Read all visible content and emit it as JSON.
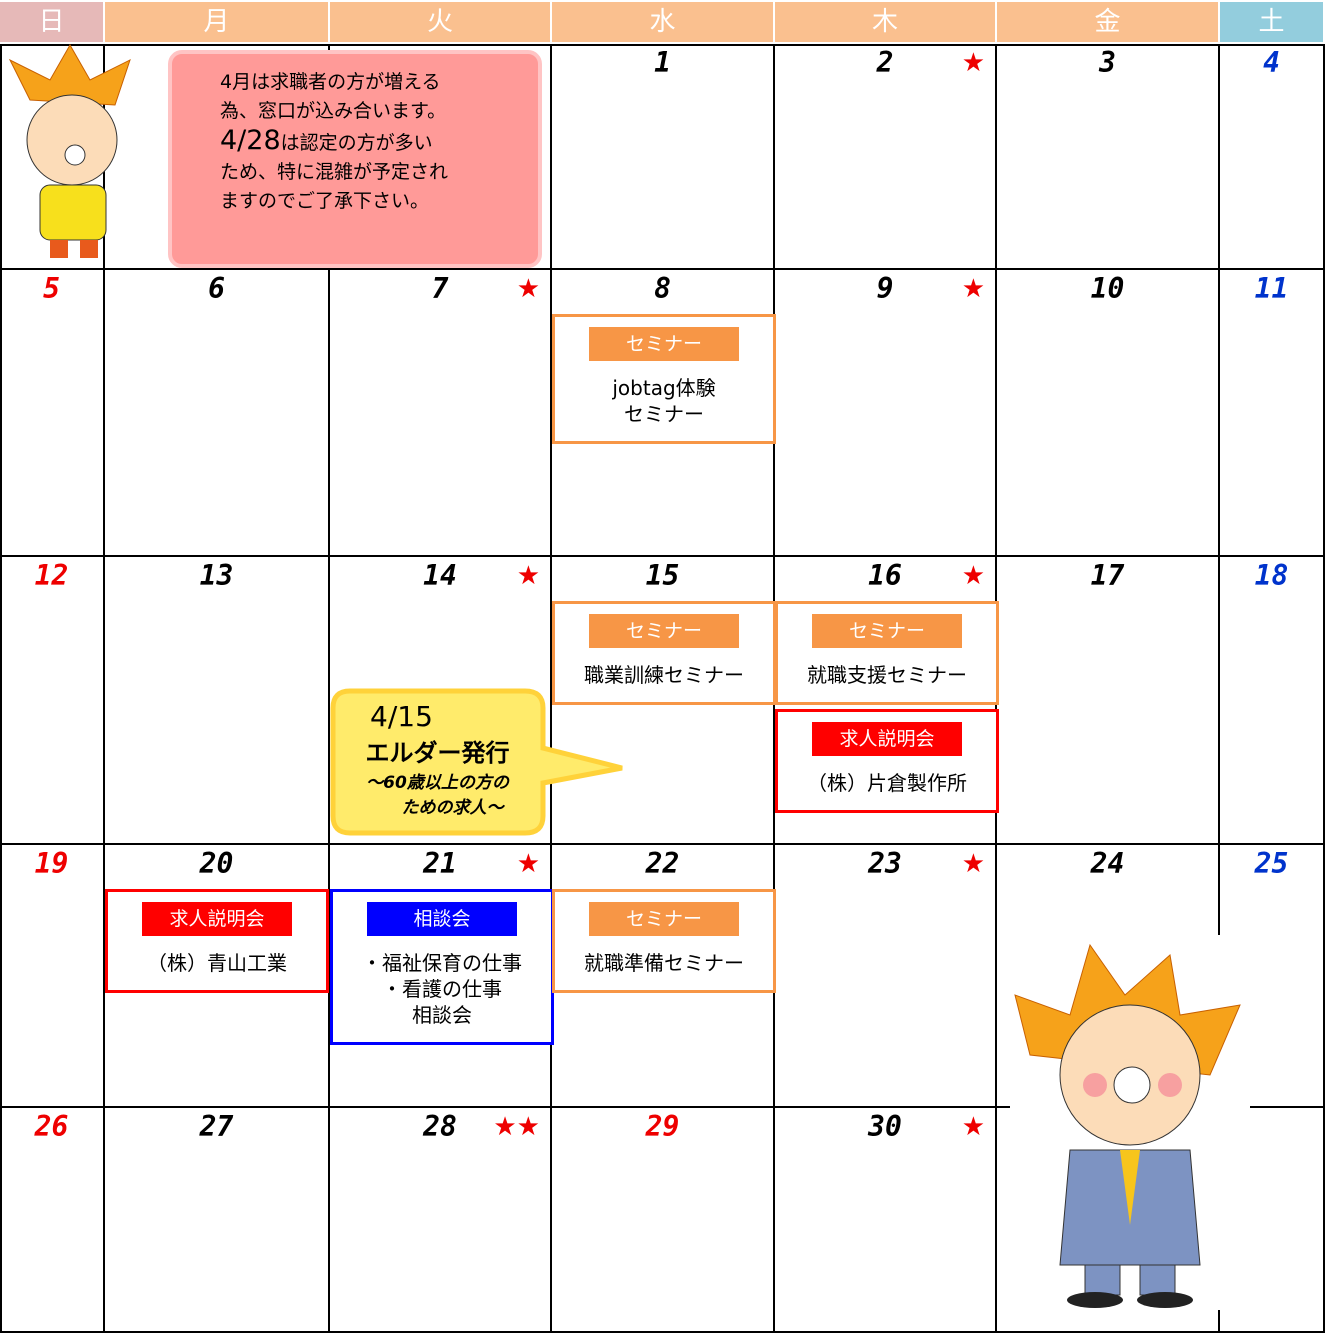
{
  "header": {
    "days": [
      "日",
      "月",
      "火",
      "水",
      "木",
      "金",
      "土"
    ]
  },
  "note": {
    "lines": [
      "4月は求職者の方が増える",
      "為、窓口が込み合います。",
      "は認定の方が多い",
      "ため、特に混雑が予定され",
      "ますのでご了承下さい。"
    ],
    "date": "4/28"
  },
  "callout": {
    "date": "4/15",
    "title": "エルダー発行",
    "subtitle": [
      "～60歳以上の方の",
      "ための求人～"
    ]
  },
  "weeks": [
    [
      null,
      null,
      null,
      {
        "day": "1"
      },
      {
        "day": "2",
        "star": "★"
      },
      {
        "day": "3"
      },
      {
        "day": "4"
      }
    ],
    [
      {
        "day": "5"
      },
      {
        "day": "6"
      },
      {
        "day": "7",
        "star": "★"
      },
      {
        "day": "8",
        "events": [
          {
            "tag": "セミナー",
            "color": "#f79646",
            "text": [
              "jobtag体験",
              "セミナー"
            ]
          }
        ]
      },
      {
        "day": "9",
        "star": "★"
      },
      {
        "day": "10"
      },
      {
        "day": "11"
      }
    ],
    [
      {
        "day": "12"
      },
      {
        "day": "13"
      },
      {
        "day": "14",
        "star": "★"
      },
      {
        "day": "15",
        "events": [
          {
            "tag": "セミナー",
            "color": "#f79646",
            "text": [
              "職業訓練セミナー"
            ]
          }
        ]
      },
      {
        "day": "16",
        "star": "★",
        "events": [
          {
            "tag": "セミナー",
            "color": "#f79646",
            "text": [
              "就職支援セミナー"
            ]
          },
          {
            "tag": "求人説明会",
            "color": "#ff0000",
            "text": [
              "（株）片倉製作所"
            ]
          }
        ]
      },
      {
        "day": "17"
      },
      {
        "day": "18"
      }
    ],
    [
      {
        "day": "19"
      },
      {
        "day": "20",
        "events": [
          {
            "tag": "求人説明会",
            "color": "#ff0000",
            "text": [
              "（株）青山工業"
            ]
          }
        ]
      },
      {
        "day": "21",
        "star": "★",
        "events": [
          {
            "tag": "相談会",
            "color": "#0000ff",
            "text": [
              "・福祉保育の仕事",
              "・看護の仕事",
              "相談会"
            ]
          }
        ]
      },
      {
        "day": "22",
        "events": [
          {
            "tag": "セミナー",
            "color": "#f79646",
            "text": [
              "就職準備セミナー"
            ]
          }
        ]
      },
      {
        "day": "23",
        "star": "★"
      },
      {
        "day": "24"
      },
      {
        "day": "25"
      }
    ],
    [
      {
        "day": "26"
      },
      {
        "day": "27"
      },
      {
        "day": "28",
        "star": "★★"
      },
      {
        "day": "29",
        "holiday": true
      },
      {
        "day": "30",
        "star": "★"
      },
      null,
      null
    ]
  ]
}
